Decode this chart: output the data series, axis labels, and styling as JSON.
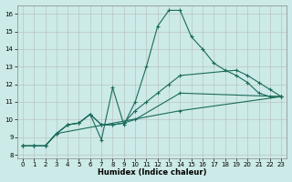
{
  "title": "",
  "xlabel": "Humidex (Indice chaleur)",
  "xlim": [
    -0.5,
    23.5
  ],
  "ylim": [
    7.8,
    16.5
  ],
  "xticks": [
    0,
    1,
    2,
    3,
    4,
    5,
    6,
    7,
    8,
    9,
    10,
    11,
    12,
    13,
    14,
    15,
    16,
    17,
    18,
    19,
    20,
    21,
    22,
    23
  ],
  "yticks": [
    8,
    9,
    10,
    11,
    12,
    13,
    14,
    15,
    16
  ],
  "background_color": "#cceae7",
  "grid_color": "#b0b0b0",
  "line_color": "#1a6b5a",
  "series1_x": [
    0,
    1,
    2,
    3,
    4,
    5,
    6,
    7,
    8,
    9,
    10,
    11,
    12,
    13,
    14,
    15,
    16,
    17,
    18,
    19,
    20,
    21,
    22,
    23
  ],
  "series1_y": [
    8.5,
    8.5,
    8.5,
    9.2,
    9.7,
    9.8,
    10.3,
    8.85,
    11.8,
    9.7,
    11.0,
    13.0,
    15.3,
    16.2,
    16.2,
    14.7,
    14.0,
    13.2,
    12.8,
    12.5,
    12.1,
    11.5,
    11.3,
    11.3
  ],
  "series2_x": [
    0,
    1,
    2,
    3,
    4,
    5,
    6,
    7,
    8,
    9,
    10,
    11,
    12,
    13,
    14,
    19,
    20,
    21,
    22,
    23
  ],
  "series2_y": [
    8.5,
    8.5,
    8.5,
    9.2,
    9.7,
    9.8,
    10.3,
    9.7,
    9.7,
    9.8,
    10.5,
    11.0,
    11.5,
    12.0,
    12.5,
    12.8,
    12.5,
    12.1,
    11.7,
    11.3
  ],
  "series3_x": [
    0,
    1,
    2,
    3,
    4,
    5,
    6,
    7,
    8,
    9,
    10,
    14,
    23
  ],
  "series3_y": [
    8.5,
    8.5,
    8.5,
    9.2,
    9.7,
    9.8,
    10.3,
    9.7,
    9.7,
    9.8,
    10.0,
    11.5,
    11.3
  ],
  "series4_x": [
    0,
    1,
    2,
    3,
    14,
    23
  ],
  "series4_y": [
    8.5,
    8.5,
    8.5,
    9.2,
    10.5,
    11.3
  ]
}
